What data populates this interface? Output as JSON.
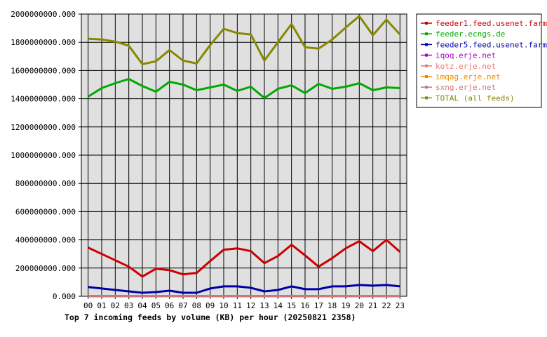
{
  "chart_data": {
    "type": "line",
    "title": "Top 7 incoming feeds by volume (KB) per hour (20250821 2358)",
    "xlabel": "",
    "ylabel": "",
    "x": [
      "00",
      "01",
      "02",
      "03",
      "04",
      "05",
      "06",
      "07",
      "08",
      "09",
      "10",
      "11",
      "12",
      "13",
      "14",
      "15",
      "16",
      "17",
      "18",
      "19",
      "20",
      "21",
      "22",
      "23"
    ],
    "y_ticks": [
      "0.000",
      "200000000.000",
      "400000000.000",
      "600000000.000",
      "800000000.000",
      "1000000000.000",
      "1200000000.000",
      "1400000000.000",
      "1600000000.000",
      "1800000000.000",
      "2000000000.000"
    ],
    "ylim": [
      0,
      2000000000
    ],
    "grid": true,
    "legend_position": "right",
    "series": [
      {
        "name": "feeder1.feed.usenet.farm",
        "color": "#cc0000",
        "values": [
          345000000,
          300000000,
          255000000,
          210000000,
          140000000,
          195000000,
          185000000,
          155000000,
          165000000,
          250000000,
          330000000,
          340000000,
          320000000,
          235000000,
          285000000,
          365000000,
          290000000,
          210000000,
          270000000,
          340000000,
          390000000,
          320000000,
          400000000,
          315000000
        ]
      },
      {
        "name": "feeder.ecngs.de",
        "color": "#00aa00",
        "values": [
          1415000000,
          1475000000,
          1510000000,
          1540000000,
          1490000000,
          1450000000,
          1520000000,
          1500000000,
          1460000000,
          1480000000,
          1500000000,
          1455000000,
          1485000000,
          1405000000,
          1470000000,
          1495000000,
          1440000000,
          1505000000,
          1470000000,
          1485000000,
          1510000000,
          1460000000,
          1480000000,
          1475000000
        ]
      },
      {
        "name": "feeder5.feed.usenet.farm",
        "color": "#0000aa",
        "values": [
          65000000,
          55000000,
          45000000,
          35000000,
          25000000,
          30000000,
          40000000,
          25000000,
          25000000,
          55000000,
          70000000,
          70000000,
          60000000,
          35000000,
          45000000,
          70000000,
          50000000,
          50000000,
          70000000,
          70000000,
          80000000,
          75000000,
          80000000,
          70000000
        ]
      },
      {
        "name": "iqoq.erje.net",
        "color": "#aa00cc",
        "values": [
          1000000,
          1000000,
          1000000,
          1000000,
          1000000,
          1000000,
          1000000,
          1000000,
          1000000,
          1000000,
          1000000,
          1000000,
          1000000,
          1000000,
          1000000,
          1000000,
          1000000,
          1000000,
          1000000,
          1000000,
          1000000,
          1000000,
          1000000,
          1000000
        ]
      },
      {
        "name": "kotz.erje.net",
        "color": "#ee7777",
        "values": [
          1000000,
          1000000,
          1000000,
          1000000,
          1000000,
          1000000,
          1000000,
          1000000,
          1000000,
          1000000,
          1000000,
          1000000,
          1000000,
          1000000,
          1000000,
          1000000,
          1000000,
          1000000,
          1000000,
          1000000,
          1000000,
          1000000,
          1000000,
          1000000
        ]
      },
      {
        "name": "imqag.erje.net",
        "color": "#ee8800",
        "values": [
          1000000,
          1000000,
          1000000,
          1000000,
          1000000,
          1000000,
          1000000,
          1000000,
          1000000,
          1000000,
          1000000,
          1000000,
          1000000,
          1000000,
          1000000,
          1000000,
          1000000,
          1000000,
          1000000,
          1000000,
          1000000,
          1000000,
          1000000,
          1000000
        ]
      },
      {
        "name": "sxng.erje.net",
        "color": "#cc7777",
        "values": [
          1000000,
          1000000,
          1000000,
          1000000,
          1000000,
          1000000,
          1000000,
          1000000,
          1000000,
          1000000,
          1000000,
          1000000,
          1000000,
          1000000,
          1000000,
          1000000,
          1000000,
          1000000,
          1000000,
          1000000,
          1000000,
          1000000,
          1000000,
          1000000
        ]
      },
      {
        "name": "TOTAL (all feeds)",
        "color": "#888800",
        "values": [
          1825000000,
          1820000000,
          1805000000,
          1775000000,
          1645000000,
          1665000000,
          1745000000,
          1670000000,
          1650000000,
          1780000000,
          1895000000,
          1865000000,
          1855000000,
          1670000000,
          1800000000,
          1930000000,
          1765000000,
          1755000000,
          1820000000,
          1905000000,
          1985000000,
          1850000000,
          1960000000,
          1855000000
        ]
      }
    ]
  }
}
